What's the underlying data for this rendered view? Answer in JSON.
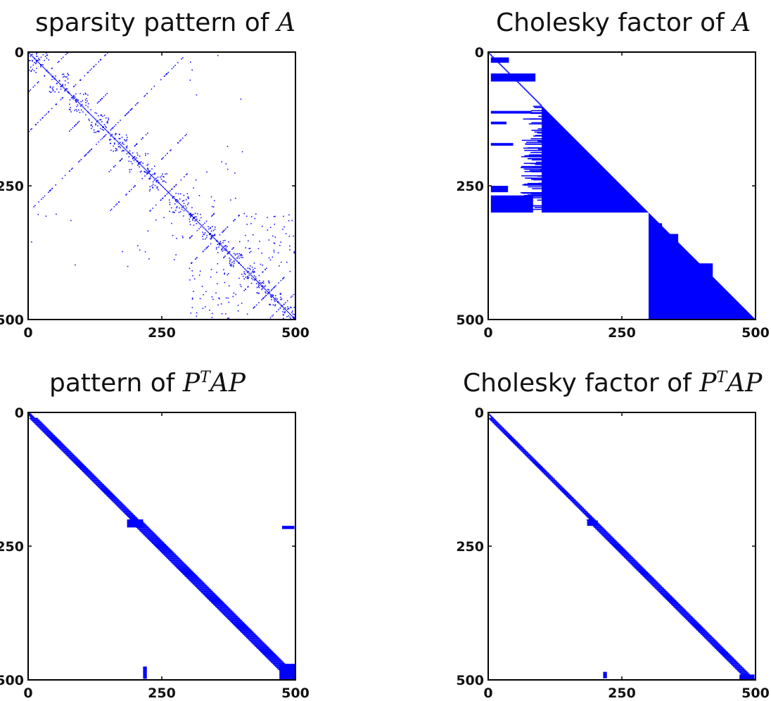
{
  "chart_data": [
    {
      "type": "heatmap",
      "title_text": "sparsity pattern of ",
      "title_math": "A",
      "title_sup": "",
      "title_math2": "",
      "xlim": [
        0,
        500
      ],
      "ylim": [
        0,
        500
      ],
      "xticks": [
        "0",
        "250",
        "500"
      ],
      "yticks": [
        "0",
        "250",
        "500"
      ],
      "color": "#0000ff",
      "structure": "nested block fractal pattern: blocks 0-300, 300-400, 400-500 with off-diagonal coupling"
    },
    {
      "type": "heatmap",
      "title_text": "Cholesky factor of ",
      "title_math": "A",
      "title_sup": "",
      "title_math2": "",
      "xlim": [
        0,
        500
      ],
      "ylim": [
        0,
        500
      ],
      "xticks": [
        "0",
        "250",
        "500"
      ],
      "yticks": [
        "0",
        "250",
        "500"
      ],
      "color": "#0000ff",
      "structure": "lower triangular with dense fill-in: triangle rows 100-300 cols 100-300, rows 300-500 cols 300-500, plus horizontal band streaks"
    },
    {
      "type": "heatmap",
      "title_text": "pattern of ",
      "title_math": "P",
      "title_sup": "T",
      "title_math2": "AP",
      "xlim": [
        0,
        500
      ],
      "ylim": [
        0,
        500
      ],
      "xticks": [
        "0",
        "250",
        "500"
      ],
      "yticks": [
        "0",
        "250",
        "500"
      ],
      "color": "#0000ff",
      "structure": "narrow banded diagonal, bandwidth ~10-15, small blocks at (220,500) and (500,220)"
    },
    {
      "type": "heatmap",
      "title_text": "Cholesky factor of ",
      "title_math": "P",
      "title_sup": "T",
      "title_math2": "AP",
      "xlim": [
        0,
        500
      ],
      "ylim": [
        0,
        500
      ],
      "xticks": [
        "0",
        "250",
        "500"
      ],
      "yticks": [
        "0",
        "250",
        "500"
      ],
      "color": "#0000ff",
      "structure": "lower banded triangle along diagonal, small block at col ~220 rows 485-495"
    }
  ]
}
